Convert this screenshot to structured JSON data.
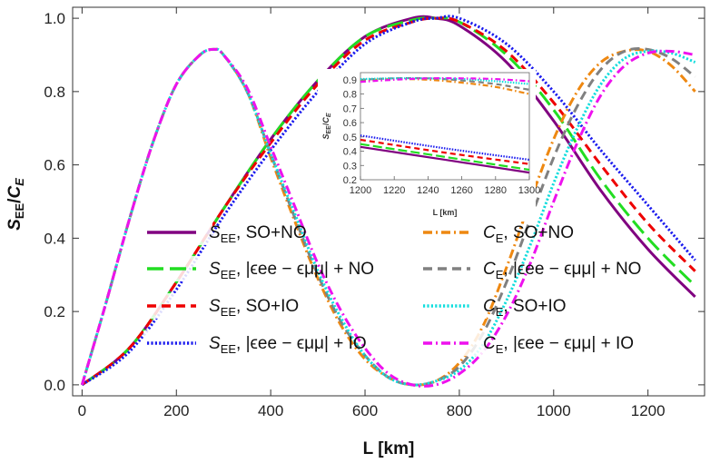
{
  "chart_data": {
    "type": "line",
    "xlabel": "L [km]",
    "ylabel": "S_EE/C_E",
    "xlim": [
      -20,
      1320
    ],
    "ylim": [
      -0.03,
      1.03
    ],
    "xticks": [
      0,
      200,
      400,
      600,
      800,
      1000,
      1200
    ],
    "yticks": [
      0.0,
      0.2,
      0.4,
      0.6,
      0.8,
      1.0
    ],
    "xtick_labels": [
      "0",
      "200",
      "400",
      "600",
      "800",
      "1000",
      "1200"
    ],
    "ytick_labels": [
      "0.0",
      "0.2",
      "0.4",
      "0.6",
      "0.8",
      "1.0"
    ],
    "grid": false,
    "legend_position": "bottom-center",
    "series": [
      {
        "name": "S_EE, SO+NO",
        "color": "#800080",
        "dash": "solid",
        "x": [
          0,
          100,
          200,
          300,
          400,
          500,
          600,
          700,
          750,
          800,
          900,
          1000,
          1100,
          1200,
          1300
        ],
        "y": [
          0.0,
          0.1,
          0.28,
          0.48,
          0.67,
          0.83,
          0.95,
          1.0,
          1.0,
          0.98,
          0.88,
          0.72,
          0.53,
          0.37,
          0.24
        ]
      },
      {
        "name": "S_EE, |ε_ee − ε_μμ| + NO",
        "color": "#22dd22",
        "dash": "long",
        "x": [
          0,
          100,
          200,
          300,
          400,
          500,
          600,
          700,
          750,
          800,
          900,
          1000,
          1100,
          1200,
          1300
        ],
        "y": [
          0.0,
          0.1,
          0.28,
          0.48,
          0.67,
          0.83,
          0.95,
          0.995,
          1.0,
          0.99,
          0.9,
          0.75,
          0.56,
          0.4,
          0.27
        ]
      },
      {
        "name": "S_EE, SO+IO",
        "color": "#ee0000",
        "dash": "dash",
        "x": [
          0,
          100,
          200,
          300,
          400,
          500,
          600,
          700,
          750,
          800,
          900,
          1000,
          1100,
          1200,
          1300
        ],
        "y": [
          0.0,
          0.1,
          0.28,
          0.48,
          0.66,
          0.82,
          0.94,
          0.99,
          1.0,
          0.99,
          0.91,
          0.77,
          0.6,
          0.44,
          0.31
        ]
      },
      {
        "name": "S_EE, |ε_ee − ε_μμ| + IO",
        "color": "#1a1aee",
        "dash": "dot",
        "x": [
          0,
          100,
          200,
          300,
          400,
          500,
          600,
          700,
          750,
          800,
          900,
          1000,
          1100,
          1200,
          1300
        ],
        "y": [
          0.0,
          0.09,
          0.26,
          0.46,
          0.64,
          0.8,
          0.93,
          0.99,
          1.0,
          1.0,
          0.93,
          0.8,
          0.64,
          0.49,
          0.34
        ]
      },
      {
        "name": "C_E, SO+NO",
        "color": "#ee8811",
        "dash": "dashdot",
        "x": [
          0,
          50,
          100,
          150,
          200,
          250,
          280,
          300,
          350,
          400,
          450,
          500,
          550,
          600,
          650,
          700,
          750,
          800,
          850,
          900,
          950,
          1000,
          1050,
          1100,
          1150,
          1200,
          1250,
          1300
        ],
        "y": [
          0.0,
          0.22,
          0.45,
          0.66,
          0.82,
          0.9,
          0.915,
          0.9,
          0.8,
          0.62,
          0.45,
          0.29,
          0.16,
          0.07,
          0.02,
          0.0,
          0.01,
          0.06,
          0.16,
          0.32,
          0.5,
          0.67,
          0.8,
          0.88,
          0.91,
          0.91,
          0.87,
          0.8
        ]
      },
      {
        "name": "C_E, |ε_ee − ε_μμ| + NO",
        "color": "#808080",
        "dash": "dash",
        "x": [
          0,
          50,
          100,
          150,
          200,
          250,
          280,
          300,
          350,
          400,
          450,
          500,
          550,
          600,
          650,
          700,
          750,
          800,
          850,
          900,
          950,
          1000,
          1050,
          1100,
          1150,
          1200,
          1250,
          1300
        ],
        "y": [
          0.0,
          0.22,
          0.45,
          0.66,
          0.82,
          0.9,
          0.915,
          0.9,
          0.8,
          0.63,
          0.46,
          0.3,
          0.17,
          0.08,
          0.02,
          0.0,
          0.01,
          0.05,
          0.14,
          0.28,
          0.45,
          0.62,
          0.76,
          0.86,
          0.91,
          0.915,
          0.89,
          0.84
        ]
      },
      {
        "name": "C_E, SO+IO",
        "color": "#11dddd",
        "dash": "dot",
        "x": [
          0,
          50,
          100,
          150,
          200,
          250,
          280,
          300,
          350,
          400,
          450,
          500,
          550,
          600,
          650,
          700,
          750,
          800,
          850,
          900,
          950,
          1000,
          1050,
          1100,
          1150,
          1200,
          1250,
          1300
        ],
        "y": [
          0.0,
          0.22,
          0.45,
          0.66,
          0.82,
          0.9,
          0.915,
          0.9,
          0.8,
          0.63,
          0.47,
          0.31,
          0.18,
          0.08,
          0.02,
          0.0,
          0.01,
          0.04,
          0.11,
          0.23,
          0.38,
          0.55,
          0.7,
          0.82,
          0.89,
          0.91,
          0.905,
          0.88
        ]
      },
      {
        "name": "C_E, |ε_ee − ε_μμ| + IO",
        "color": "#ee11ee",
        "dash": "dashdot",
        "x": [
          0,
          50,
          100,
          150,
          200,
          250,
          280,
          300,
          350,
          400,
          450,
          500,
          550,
          600,
          650,
          700,
          750,
          800,
          850,
          900,
          950,
          1000,
          1050,
          1100,
          1150,
          1200,
          1250,
          1300
        ],
        "y": [
          0.0,
          0.22,
          0.45,
          0.66,
          0.82,
          0.9,
          0.915,
          0.9,
          0.81,
          0.65,
          0.49,
          0.33,
          0.2,
          0.1,
          0.03,
          0.0,
          0.0,
          0.03,
          0.09,
          0.19,
          0.33,
          0.5,
          0.66,
          0.79,
          0.87,
          0.905,
          0.91,
          0.9
        ]
      }
    ],
    "inset": {
      "xlabel": "L [km]",
      "ylabel": "S_EE/C_E",
      "xlim": [
        1200,
        1300
      ],
      "ylim": [
        0.2,
        0.95
      ],
      "xticks": [
        1200,
        1220,
        1240,
        1260,
        1280,
        1300
      ],
      "yticks": [
        0.2,
        0.3,
        0.4,
        0.5,
        0.6,
        0.7,
        0.8,
        0.9
      ],
      "xtick_labels": [
        "1200",
        "1220",
        "1240",
        "1260",
        "1280",
        "1300"
      ],
      "ytick_labels": [
        "0.2",
        "0.3",
        "0.4",
        "0.5",
        "0.6",
        "0.7",
        "0.8",
        "0.9"
      ],
      "series": [
        {
          "x": [
            1200,
            1250,
            1300
          ],
          "y": [
            0.43,
            0.34,
            0.25
          ]
        },
        {
          "x": [
            1200,
            1250,
            1300
          ],
          "y": [
            0.45,
            0.36,
            0.27
          ]
        },
        {
          "x": [
            1200,
            1250,
            1300
          ],
          "y": [
            0.48,
            0.39,
            0.31
          ]
        },
        {
          "x": [
            1200,
            1250,
            1300
          ],
          "y": [
            0.51,
            0.42,
            0.34
          ]
        },
        {
          "x": [
            1200,
            1220,
            1240,
            1260,
            1280,
            1300
          ],
          "y": [
            0.895,
            0.905,
            0.9,
            0.88,
            0.85,
            0.8
          ]
        },
        {
          "x": [
            1200,
            1220,
            1240,
            1260,
            1280,
            1300
          ],
          "y": [
            0.9,
            0.91,
            0.91,
            0.895,
            0.87,
            0.83
          ]
        },
        {
          "x": [
            1200,
            1220,
            1240,
            1260,
            1280,
            1300
          ],
          "y": [
            0.905,
            0.91,
            0.91,
            0.905,
            0.89,
            0.87
          ]
        },
        {
          "x": [
            1200,
            1220,
            1240,
            1260,
            1280,
            1300
          ],
          "y": [
            0.885,
            0.9,
            0.91,
            0.91,
            0.905,
            0.89
          ]
        }
      ]
    }
  },
  "legend": {
    "left": [
      {
        "sym": "S",
        "sub": "EE",
        "rest": ", SO+NO"
      },
      {
        "sym": "S",
        "sub": "EE",
        "rest": ", |ϵee − ϵμμ| + NO"
      },
      {
        "sym": "S",
        "sub": "EE",
        "rest": ", SO+IO"
      },
      {
        "sym": "S",
        "sub": "EE",
        "rest": ", |ϵee − ϵμμ| + IO"
      }
    ],
    "right": [
      {
        "sym": "C",
        "sub": "E",
        "rest": ", SO+NO"
      },
      {
        "sym": "C",
        "sub": "E",
        "rest": ", |ϵee − ϵμμ| + NO"
      },
      {
        "sym": "C",
        "sub": "E",
        "rest": ", SO+IO"
      },
      {
        "sym": "C",
        "sub": "E",
        "rest": ", |ϵee − ϵμμ| + IO"
      }
    ]
  }
}
